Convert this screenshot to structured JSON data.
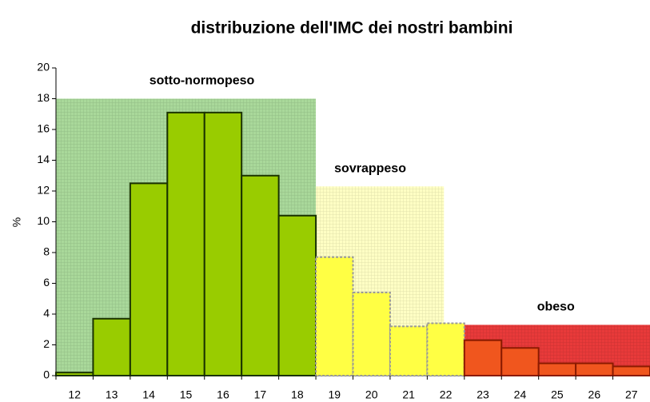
{
  "chart_data": {
    "type": "bar",
    "title": "distribuzione dell'IMC dei nostri bambini",
    "ylabel": "%",
    "x": [
      12,
      13,
      14,
      15,
      16,
      17,
      18,
      19,
      20,
      21,
      22,
      23,
      24,
      25,
      26,
      27
    ],
    "values": [
      0.2,
      3.7,
      12.5,
      17.1,
      17.1,
      13.0,
      10.4,
      7.7,
      5.4,
      3.2,
      3.4,
      2.3,
      1.8,
      0.8,
      0.8,
      0.6
    ],
    "colors": [
      "#99cc00",
      "#99cc00",
      "#99cc00",
      "#99cc00",
      "#99cc00",
      "#99cc00",
      "#99cc00",
      "#ffff44",
      "#ffff44",
      "#ffff44",
      "#ffff44",
      "#f0561e",
      "#f0561e",
      "#f0561e",
      "#f0561e",
      "#f0561e"
    ],
    "zones": [
      {
        "label": "sotto-normopeso",
        "from": 11.5,
        "to": 18.5,
        "height": 18,
        "color": "#a9d89a"
      },
      {
        "label": "sovrappeso",
        "from": 18.5,
        "to": 21.95,
        "height": 12.3,
        "color": "#ffffc4"
      },
      {
        "label": "obeso",
        "from": 21.95,
        "to": 27.5,
        "height": 3.3,
        "color": "#e83a3a"
      }
    ],
    "xlim": [
      11.5,
      27.5
    ],
    "ylim": [
      0,
      20
    ],
    "yticks": [
      0,
      2,
      4,
      6,
      8,
      10,
      12,
      14,
      16,
      18,
      20
    ]
  }
}
